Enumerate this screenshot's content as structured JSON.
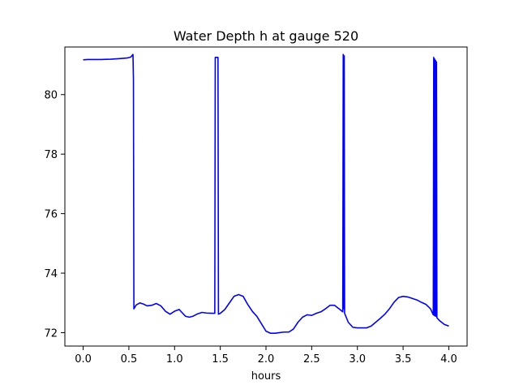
{
  "chart_data": {
    "type": "line",
    "title": "Water Depth h at gauge 520",
    "xlabel": "hours",
    "ylabel": "",
    "xlim": [
      -0.2,
      4.2
    ],
    "ylim": [
      71.55,
      81.6
    ],
    "xticks": [
      {
        "value": 0.0,
        "label": "0.0"
      },
      {
        "value": 0.5,
        "label": "0.5"
      },
      {
        "value": 1.0,
        "label": "1.0"
      },
      {
        "value": 1.5,
        "label": "1.5"
      },
      {
        "value": 2.0,
        "label": "2.0"
      },
      {
        "value": 2.5,
        "label": "2.5"
      },
      {
        "value": 3.0,
        "label": "3.0"
      },
      {
        "value": 3.5,
        "label": "3.5"
      },
      {
        "value": 4.0,
        "label": "4.0"
      }
    ],
    "yticks": [
      {
        "value": 72,
        "label": "72"
      },
      {
        "value": 74,
        "label": "74"
      },
      {
        "value": 76,
        "label": "76"
      },
      {
        "value": 78,
        "label": "78"
      },
      {
        "value": 80,
        "label": "80"
      }
    ],
    "grid": false,
    "series": [
      {
        "color": "#0000ff",
        "x": [
          0.0,
          0.05,
          0.1,
          0.2,
          0.3,
          0.4,
          0.48,
          0.52,
          0.545,
          0.55,
          0.555,
          0.58,
          0.62,
          0.66,
          0.7,
          0.75,
          0.8,
          0.85,
          0.9,
          0.95,
          1.0,
          1.05,
          1.08,
          1.12,
          1.16,
          1.2,
          1.25,
          1.3,
          1.35,
          1.4,
          1.44,
          1.445,
          1.45,
          1.475,
          1.48,
          1.5,
          1.55,
          1.6,
          1.65,
          1.7,
          1.75,
          1.8,
          1.85,
          1.9,
          1.95,
          2.0,
          2.05,
          2.1,
          2.15,
          2.2,
          2.25,
          2.3,
          2.35,
          2.4,
          2.45,
          2.5,
          2.55,
          2.6,
          2.65,
          2.7,
          2.75,
          2.8,
          2.84,
          2.845,
          2.85,
          2.853,
          2.856,
          2.86,
          2.9,
          2.95,
          3.0,
          3.05,
          3.1,
          3.15,
          3.2,
          3.25,
          3.3,
          3.35,
          3.4,
          3.45,
          3.5,
          3.55,
          3.6,
          3.65,
          3.7,
          3.75,
          3.8,
          3.83,
          3.835,
          3.84,
          3.845,
          3.85,
          3.855,
          3.86,
          3.865,
          3.87,
          3.9,
          3.95,
          4.0
        ],
        "y": [
          81.17,
          81.18,
          81.18,
          81.18,
          81.19,
          81.21,
          81.23,
          81.26,
          81.35,
          80.5,
          72.8,
          72.93,
          73.0,
          72.96,
          72.9,
          72.92,
          72.98,
          72.9,
          72.72,
          72.62,
          72.72,
          72.78,
          72.68,
          72.55,
          72.52,
          72.55,
          72.63,
          72.68,
          72.66,
          72.65,
          72.65,
          81.25,
          81.25,
          81.25,
          72.62,
          72.65,
          72.78,
          73.0,
          73.22,
          73.28,
          73.22,
          72.95,
          72.72,
          72.55,
          72.3,
          72.05,
          71.98,
          71.98,
          72.0,
          72.02,
          72.02,
          72.12,
          72.35,
          72.52,
          72.6,
          72.58,
          72.65,
          72.7,
          72.8,
          72.92,
          72.92,
          72.8,
          72.7,
          81.35,
          81.3,
          72.8,
          81.3,
          72.65,
          72.35,
          72.18,
          72.16,
          72.16,
          72.16,
          72.22,
          72.35,
          72.48,
          72.62,
          72.8,
          73.02,
          73.18,
          73.22,
          73.2,
          73.15,
          73.1,
          73.02,
          72.95,
          72.8,
          72.6,
          81.25,
          72.58,
          81.2,
          72.56,
          81.15,
          72.55,
          81.1,
          72.5,
          72.4,
          72.28,
          72.22
        ]
      }
    ]
  }
}
